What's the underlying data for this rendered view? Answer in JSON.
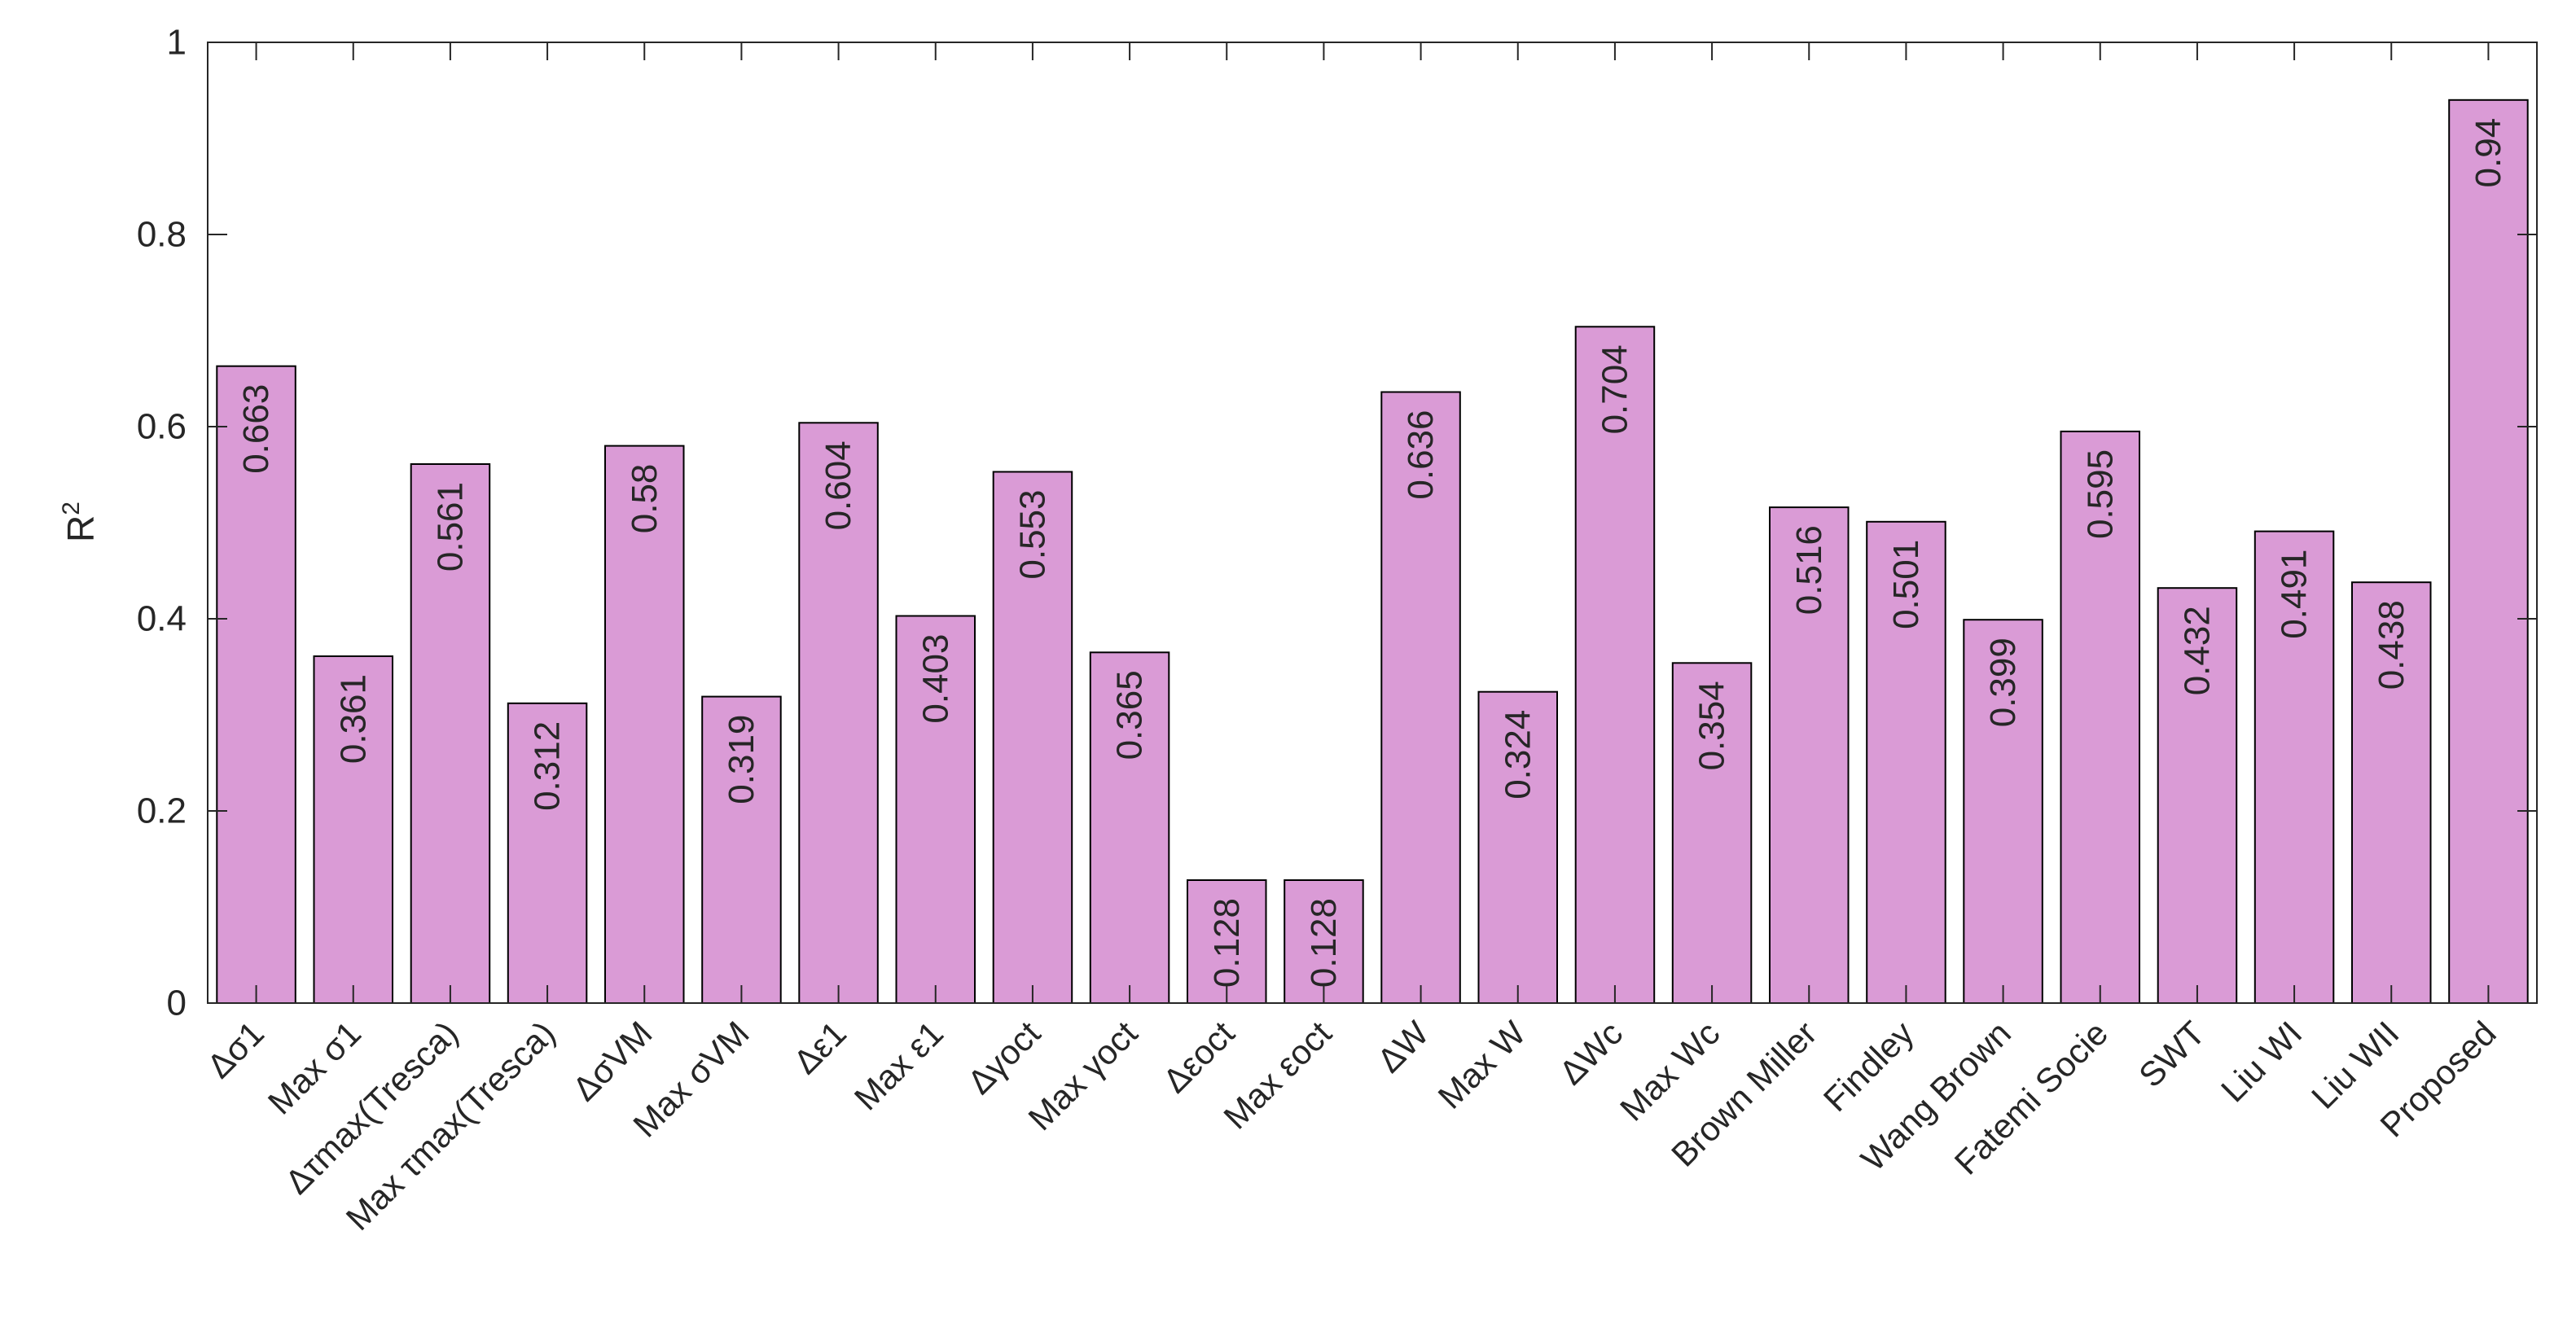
{
  "chart_data": {
    "type": "bar",
    "title": "",
    "xlabel": "",
    "ylabel": "R",
    "ylabel_superscript": "2",
    "ylim": [
      0,
      1
    ],
    "yticks": [
      "0",
      "0.2",
      "0.4",
      "0.6",
      "0.8",
      "1"
    ],
    "ytick_values": [
      0,
      0.2,
      0.4,
      0.6,
      0.8,
      1
    ],
    "grid": false,
    "bar_color": "#DA9BD6",
    "edge_color": "#000000",
    "categories": [
      "Δσ1",
      "Max σ1",
      "Δτmax(Tresca)",
      "Max τmax(Tresca)",
      "ΔσVM",
      "Max σVM",
      "Δε1",
      "Max ε1",
      "Δγoct",
      "Max γoct",
      "Δεoct",
      "Max εoct",
      "ΔW",
      "Max W",
      "ΔWc",
      "Max Wc",
      "Brown Miller",
      "Findley",
      "Wang Brown",
      "Fatemi Socie",
      "SWT",
      "Liu WI",
      "Liu WII",
      "Proposed"
    ],
    "values": [
      0.663,
      0.361,
      0.561,
      0.312,
      0.58,
      0.319,
      0.604,
      0.403,
      0.553,
      0.365,
      0.128,
      0.128,
      0.636,
      0.324,
      0.704,
      0.354,
      0.516,
      0.501,
      0.399,
      0.595,
      0.432,
      0.491,
      0.438,
      0.94
    ],
    "data_labels": [
      "0.663",
      "0.361",
      "0.561",
      "0.312",
      "0.58",
      "0.319",
      "0.604",
      "0.403",
      "0.553",
      "0.365",
      "0.128",
      "0.128",
      "0.636",
      "0.324",
      "0.704",
      "0.354",
      "0.516",
      "0.501",
      "0.399",
      "0.595",
      "0.432",
      "0.491",
      "0.438",
      "0.94"
    ]
  }
}
